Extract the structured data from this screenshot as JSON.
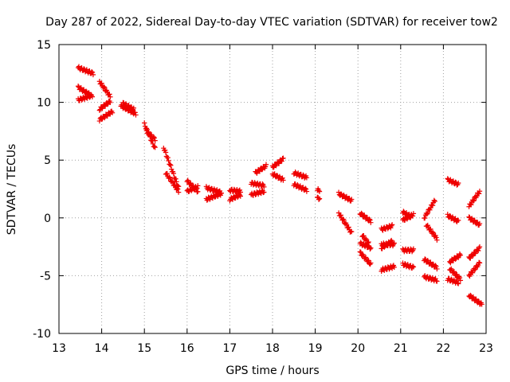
{
  "chart_data": {
    "type": "scatter",
    "title": "Day 287 of 2022, Sidereal Day-to-day VTEC variation (SDTVAR) for receiver tow2",
    "xlabel": "GPS time / hours",
    "ylabel": "SDTVAR / TECUs",
    "xlim": [
      13,
      23
    ],
    "ylim": [
      -10,
      15
    ],
    "x_ticks": [
      13,
      14,
      15,
      16,
      17,
      18,
      19,
      20,
      21,
      22,
      23
    ],
    "y_ticks": [
      15,
      10,
      5,
      0,
      -5,
      -10
    ],
    "grid": true,
    "marker": "+",
    "color": "#ee0000",
    "segments": [
      {
        "x0": 13.45,
        "y0": 13.0,
        "x1": 13.8,
        "y1": 12.5
      },
      {
        "x0": 13.45,
        "y0": 11.3,
        "x1": 13.75,
        "y1": 10.6
      },
      {
        "x0": 13.45,
        "y0": 10.2,
        "x1": 13.78,
        "y1": 10.6
      },
      {
        "x0": 13.95,
        "y0": 11.8,
        "x1": 14.2,
        "y1": 10.5
      },
      {
        "x0": 13.95,
        "y0": 9.4,
        "x1": 14.2,
        "y1": 10.1
      },
      {
        "x0": 13.95,
        "y0": 8.5,
        "x1": 14.25,
        "y1": 9.2
      },
      {
        "x0": 14.45,
        "y0": 9.7,
        "x1": 14.8,
        "y1": 9.0
      },
      {
        "x0": 14.5,
        "y0": 9.9,
        "x1": 14.75,
        "y1": 9.4
      },
      {
        "x0": 15.0,
        "y0": 8.1,
        "x1": 15.25,
        "y1": 6.0
      },
      {
        "x0": 15.05,
        "y0": 7.5,
        "x1": 15.25,
        "y1": 6.8
      },
      {
        "x0": 15.45,
        "y0": 6.1,
        "x1": 15.8,
        "y1": 2.6
      },
      {
        "x0": 15.5,
        "y0": 3.9,
        "x1": 15.8,
        "y1": 2.3
      },
      {
        "x0": 16.0,
        "y0": 3.2,
        "x1": 16.25,
        "y1": 2.3
      },
      {
        "x0": 16.0,
        "y0": 2.3,
        "x1": 16.25,
        "y1": 2.7
      },
      {
        "x0": 16.45,
        "y0": 2.6,
        "x1": 16.8,
        "y1": 2.2
      },
      {
        "x0": 16.45,
        "y0": 1.6,
        "x1": 16.8,
        "y1": 2.1
      },
      {
        "x0": 17.0,
        "y0": 2.4,
        "x1": 17.25,
        "y1": 2.3
      },
      {
        "x0": 17.0,
        "y0": 1.6,
        "x1": 17.25,
        "y1": 2.0
      },
      {
        "x0": 17.5,
        "y0": 3.0,
        "x1": 17.8,
        "y1": 2.8
      },
      {
        "x0": 17.5,
        "y0": 2.0,
        "x1": 17.8,
        "y1": 2.3
      },
      {
        "x0": 17.6,
        "y0": 3.9,
        "x1": 17.85,
        "y1": 4.5
      },
      {
        "x0": 18.0,
        "y0": 4.4,
        "x1": 18.25,
        "y1": 5.1
      },
      {
        "x0": 18.0,
        "y0": 3.8,
        "x1": 18.25,
        "y1": 3.3
      },
      {
        "x0": 18.5,
        "y0": 3.9,
        "x1": 18.8,
        "y1": 3.5
      },
      {
        "x0": 18.5,
        "y0": 2.9,
        "x1": 18.8,
        "y1": 2.4
      },
      {
        "x0": 19.05,
        "y0": 2.4,
        "x1": 19.1,
        "y1": 2.4
      },
      {
        "x0": 19.05,
        "y0": 1.7,
        "x1": 19.1,
        "y1": 1.7
      },
      {
        "x0": 19.55,
        "y0": 2.1,
        "x1": 19.85,
        "y1": 1.5
      },
      {
        "x0": 19.55,
        "y0": 0.4,
        "x1": 19.85,
        "y1": -1.3
      },
      {
        "x0": 20.05,
        "y0": 0.4,
        "x1": 20.3,
        "y1": -0.3
      },
      {
        "x0": 20.1,
        "y0": -1.5,
        "x1": 20.25,
        "y1": -2.2
      },
      {
        "x0": 20.05,
        "y0": -2.2,
        "x1": 20.3,
        "y1": -2.6
      },
      {
        "x0": 20.05,
        "y0": -3.0,
        "x1": 20.3,
        "y1": -4.0
      },
      {
        "x0": 20.55,
        "y0": -1.0,
        "x1": 20.8,
        "y1": -0.7
      },
      {
        "x0": 20.55,
        "y0": -2.3,
        "x1": 20.85,
        "y1": -2.3
      },
      {
        "x0": 20.55,
        "y0": -2.6,
        "x1": 20.8,
        "y1": -2.0
      },
      {
        "x0": 20.55,
        "y0": -4.5,
        "x1": 20.85,
        "y1": -4.2
      },
      {
        "x0": 21.05,
        "y0": 0.5,
        "x1": 21.25,
        "y1": 0.1
      },
      {
        "x0": 21.05,
        "y0": -0.2,
        "x1": 21.3,
        "y1": 0.3
      },
      {
        "x0": 21.05,
        "y0": -2.8,
        "x1": 21.3,
        "y1": -2.8
      },
      {
        "x0": 21.05,
        "y0": -4.0,
        "x1": 21.3,
        "y1": -4.3
      },
      {
        "x0": 21.55,
        "y0": 0.0,
        "x1": 21.8,
        "y1": 1.5
      },
      {
        "x0": 21.6,
        "y0": -0.6,
        "x1": 21.85,
        "y1": -1.8
      },
      {
        "x0": 21.55,
        "y0": -3.6,
        "x1": 21.85,
        "y1": -4.3
      },
      {
        "x0": 21.55,
        "y0": -5.1,
        "x1": 21.85,
        "y1": -5.4
      },
      {
        "x0": 22.1,
        "y0": 3.3,
        "x1": 22.35,
        "y1": 2.9
      },
      {
        "x0": 22.1,
        "y0": 0.2,
        "x1": 22.35,
        "y1": -0.3
      },
      {
        "x0": 22.15,
        "y0": -3.8,
        "x1": 22.4,
        "y1": -3.2
      },
      {
        "x0": 22.15,
        "y0": -4.4,
        "x1": 22.4,
        "y1": -5.3
      },
      {
        "x0": 22.1,
        "y0": -5.3,
        "x1": 22.35,
        "y1": -5.6
      },
      {
        "x0": 22.6,
        "y0": 1.0,
        "x1": 22.85,
        "y1": 2.3
      },
      {
        "x0": 22.6,
        "y0": 0.0,
        "x1": 22.85,
        "y1": -0.6
      },
      {
        "x0": 22.6,
        "y0": -3.5,
        "x1": 22.85,
        "y1": -2.6
      },
      {
        "x0": 22.6,
        "y0": -5.0,
        "x1": 22.85,
        "y1": -3.9
      },
      {
        "x0": 22.6,
        "y0": -6.7,
        "x1": 22.9,
        "y1": -7.5
      }
    ]
  }
}
